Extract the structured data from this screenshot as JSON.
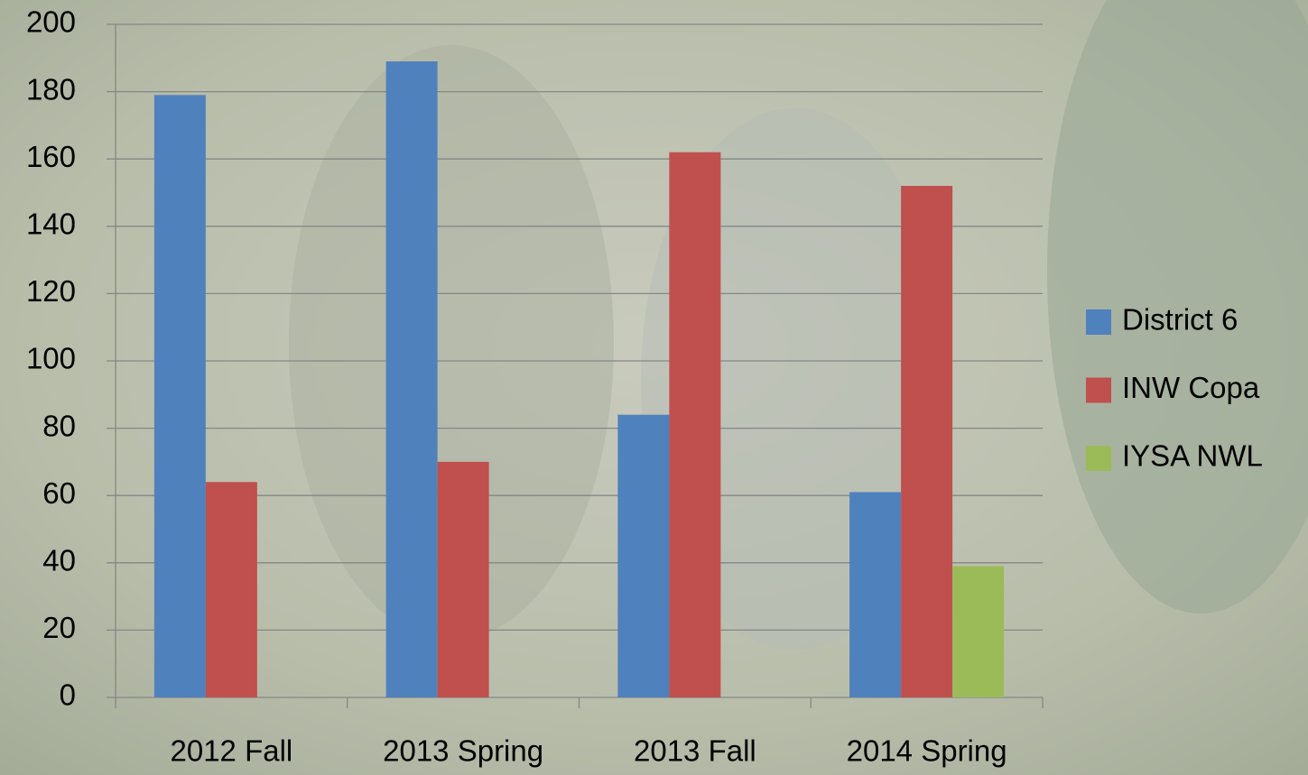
{
  "chart_data": {
    "type": "bar",
    "categories": [
      "2012 Fall",
      "2013 Spring",
      "2013 Fall",
      "2014 Spring"
    ],
    "series": [
      {
        "name": "District 6",
        "color": "#4f81bd",
        "values": [
          179,
          189,
          84,
          61
        ]
      },
      {
        "name": "INW Copa",
        "color": "#c0504d",
        "values": [
          64,
          70,
          162,
          152
        ]
      },
      {
        "name": "IYSA NWL",
        "color": "#9bbb59",
        "values": [
          null,
          null,
          null,
          39
        ]
      }
    ],
    "ylim": [
      0,
      200
    ],
    "yticks": [
      0,
      20,
      40,
      60,
      80,
      100,
      120,
      140,
      160,
      180,
      200
    ],
    "grid": true,
    "legend": "right"
  }
}
